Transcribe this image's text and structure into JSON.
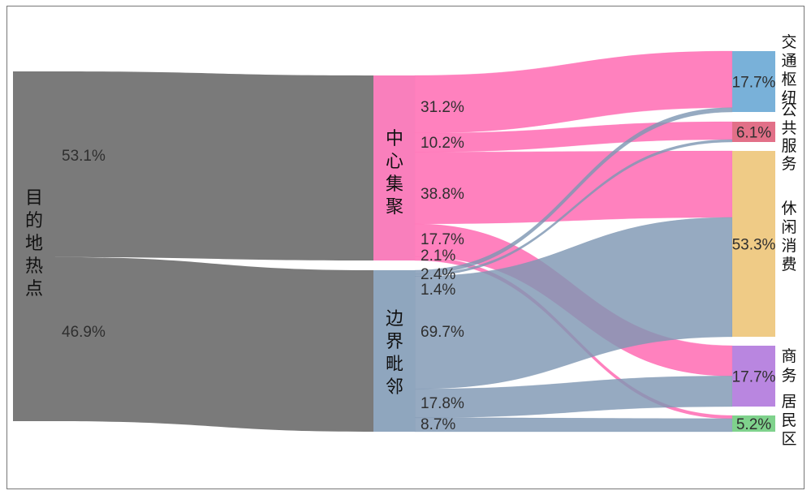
{
  "chart_data": {
    "type": "sankey",
    "source": {
      "label": "目的地热点",
      "color": "#7a7a7a"
    },
    "left_flows": [
      {
        "target": "center",
        "value": 53.1,
        "label": "53.1%"
      },
      {
        "target": "edge",
        "value": 46.9,
        "label": "46.9%"
      }
    ],
    "middle_nodes": [
      {
        "id": "center",
        "label": "中心集聚",
        "color": "#f97fbc",
        "flow_color": "#ff6fb5"
      },
      {
        "id": "edge",
        "label": "边界毗邻",
        "color": "#8fa6be",
        "flow_color": "#7f97b3"
      }
    ],
    "right_nodes": [
      {
        "id": "transport",
        "label": "交通枢纽",
        "value_label": "17.7%",
        "color": "#79b1d9"
      },
      {
        "id": "public",
        "label": "公共服务",
        "value_label": "6.1%",
        "color": "#e27088"
      },
      {
        "id": "leisure",
        "label": "休闲消费",
        "value_label": "53.3%",
        "color": "#efcb86"
      },
      {
        "id": "business",
        "label": "商务",
        "value_label": "17.7%",
        "color": "#b986e0"
      },
      {
        "id": "residential",
        "label": "居民区",
        "value_label": "5.2%",
        "color": "#7fd28c"
      }
    ],
    "flows": [
      {
        "source": "center",
        "target": "transport",
        "value": 31.2,
        "label": "31.2%"
      },
      {
        "source": "center",
        "target": "public",
        "value": 10.2,
        "label": "10.2%"
      },
      {
        "source": "center",
        "target": "leisure",
        "value": 38.8,
        "label": "38.8%"
      },
      {
        "source": "center",
        "target": "business",
        "value": 17.7,
        "label": "17.7%"
      },
      {
        "source": "center",
        "target": "residential",
        "value": 2.1,
        "label": "2.1%"
      },
      {
        "source": "edge",
        "target": "transport",
        "value": 2.4,
        "label": "2.4%"
      },
      {
        "source": "edge",
        "target": "public",
        "value": 1.4,
        "label": "1.4%"
      },
      {
        "source": "edge",
        "target": "leisure",
        "value": 69.7,
        "label": "69.7%"
      },
      {
        "source": "edge",
        "target": "business",
        "value": 17.8,
        "label": "17.8%"
      },
      {
        "source": "edge",
        "target": "residential",
        "value": 8.7,
        "label": "8.7%"
      }
    ]
  }
}
